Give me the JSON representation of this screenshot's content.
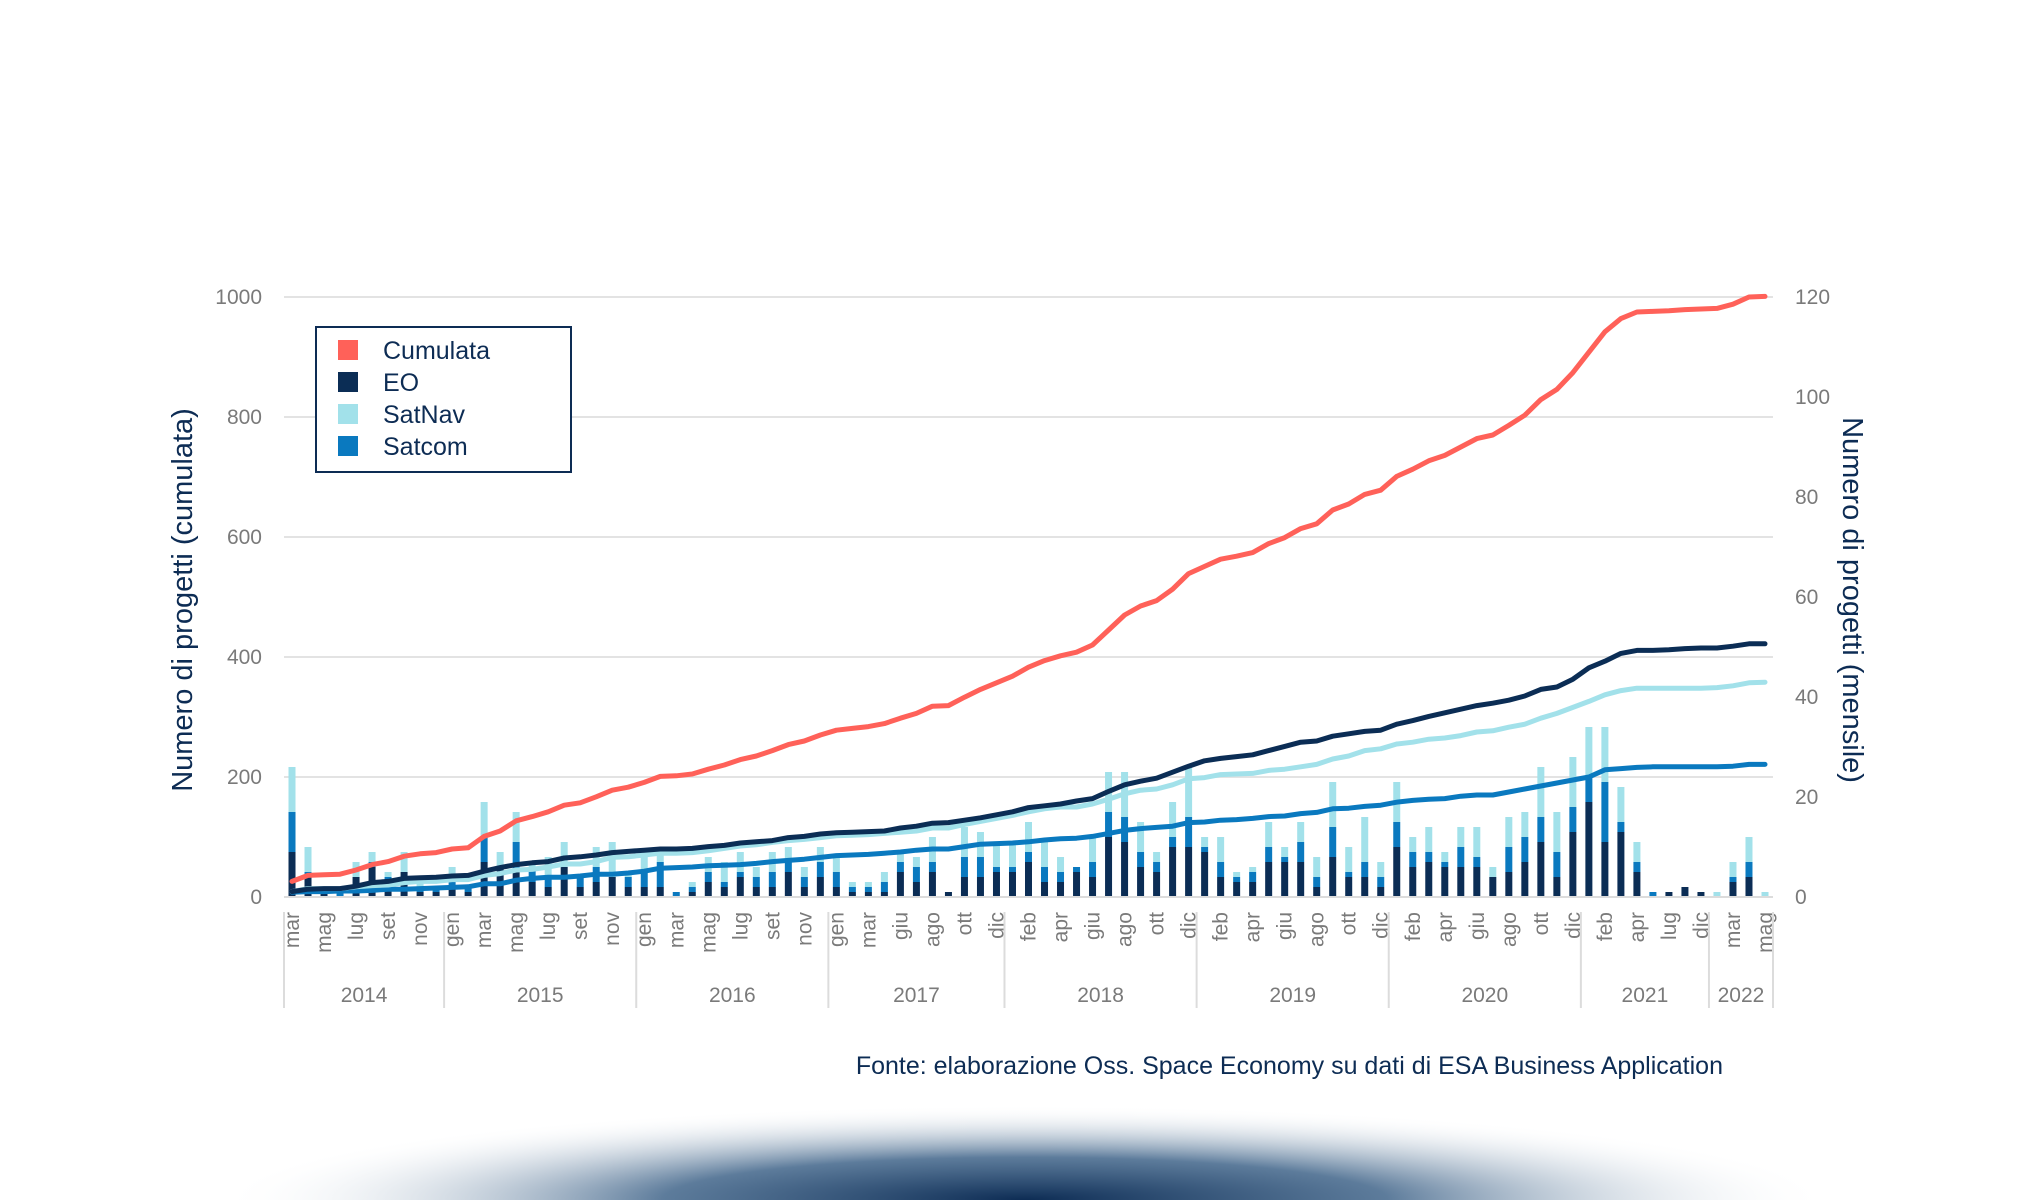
{
  "chart_data": {
    "type": "bar+line",
    "source": "Fonte: elaborazione Oss. Space Economy su dati di ESA Business Application",
    "ylabel_left": "Numero di progetti (cumulata)",
    "ylabel_right": "Numero di progetti (mensile)",
    "ylim_left": [
      0,
      1000
    ],
    "ylim_right": [
      0,
      120
    ],
    "yticks_left": [
      "0",
      "200",
      "400",
      "600",
      "800",
      "1000"
    ],
    "yticks_right": [
      "0",
      "20",
      "40",
      "60",
      "80",
      "100",
      "120"
    ],
    "grid": true,
    "legend_position": "top-left",
    "legend": [
      "Cumulata",
      "EO",
      "SatNav",
      "Satcom"
    ],
    "x_tick_labels": [
      "mar",
      "mag",
      "lug",
      "set",
      "nov",
      "gen",
      "mar",
      "mag",
      "lug",
      "set",
      "nov",
      "gen",
      "mar",
      "mag",
      "lug",
      "set",
      "nov",
      "gen",
      "mar",
      "giu",
      "ago",
      "ott",
      "dic",
      "feb",
      "apr",
      "giu",
      "ago",
      "ott",
      "dic",
      "feb",
      "apr",
      "giu",
      "ago",
      "ott",
      "dic",
      "feb",
      "apr",
      "giu",
      "ago",
      "ott",
      "dic",
      "feb",
      "apr",
      "lug",
      "dic",
      "mar",
      "mag"
    ],
    "year_groups": [
      {
        "year": "2014",
        "count": 10
      },
      {
        "year": "2015",
        "count": 12
      },
      {
        "year": "2016",
        "count": 12
      },
      {
        "year": "2017",
        "count": 11
      },
      {
        "year": "2018",
        "count": 12
      },
      {
        "year": "2019",
        "count": 12
      },
      {
        "year": "2020",
        "count": 12
      },
      {
        "year": "2021",
        "count": 8
      },
      {
        "year": "2022",
        "count": 4
      }
    ],
    "bar_series_monthly_stacked": [
      {
        "name": "EO",
        "axis": "right",
        "color": "#0b2d55",
        "values": [
          9,
          4,
          1,
          0,
          4,
          6,
          2,
          5,
          1,
          1,
          2,
          1,
          7,
          6,
          5,
          3,
          2,
          6,
          2,
          3,
          4,
          2,
          2,
          2,
          0,
          1,
          3,
          2,
          4,
          2,
          2,
          5,
          2,
          4,
          2,
          1,
          1,
          1,
          5,
          3,
          5,
          1,
          4,
          4,
          5,
          5,
          7,
          3,
          3,
          5,
          4,
          12,
          11,
          6,
          5,
          10,
          10,
          9,
          4,
          3,
          3,
          7,
          7,
          7,
          2,
          8,
          4,
          4,
          2,
          10,
          6,
          7,
          6,
          6,
          6,
          4,
          5,
          7,
          11,
          4,
          13,
          19,
          11,
          13,
          5,
          0,
          1,
          2,
          1,
          0,
          3,
          4,
          0
        ]
      },
      {
        "name": "Satcom",
        "axis": "right",
        "color": "#0a79bf",
        "values": [
          8,
          1,
          0,
          1,
          0,
          1,
          2,
          0,
          1,
          1,
          1,
          1,
          5,
          0,
          6,
          3,
          2,
          0,
          2,
          3,
          0,
          2,
          3,
          5,
          1,
          1,
          2,
          1,
          1,
          2,
          3,
          2,
          2,
          3,
          3,
          1,
          1,
          2,
          2,
          3,
          2,
          0,
          4,
          4,
          1,
          1,
          2,
          3,
          2,
          1,
          3,
          5,
          5,
          3,
          2,
          2,
          6,
          1,
          3,
          1,
          2,
          3,
          1,
          4,
          2,
          6,
          1,
          3,
          2,
          5,
          3,
          2,
          1,
          4,
          2,
          0,
          5,
          5,
          5,
          5,
          5,
          5,
          12,
          2,
          2,
          1,
          0,
          0,
          0,
          0,
          1,
          3,
          0
        ]
      },
      {
        "name": "SatNav",
        "axis": "right",
        "color": "#a2e1ea",
        "values": [
          9,
          5,
          0,
          0,
          3,
          2,
          1,
          4,
          2,
          0,
          3,
          0,
          7,
          3,
          6,
          1,
          4,
          5,
          0,
          4,
          7,
          1,
          3,
          3,
          0,
          1,
          3,
          4,
          4,
          2,
          4,
          3,
          2,
          3,
          3,
          1,
          1,
          2,
          2,
          2,
          5,
          0,
          6,
          5,
          5,
          5,
          6,
          5,
          3,
          0,
          5,
          8,
          9,
          6,
          2,
          7,
          10,
          2,
          5,
          1,
          1,
          5,
          2,
          4,
          4,
          9,
          5,
          9,
          3,
          8,
          3,
          5,
          2,
          4,
          6,
          2,
          6,
          5,
          10,
          8,
          10,
          10,
          11,
          7,
          4,
          0,
          0,
          0,
          0,
          1,
          3,
          5,
          1
        ]
      }
    ],
    "line_series_cumulative": [
      {
        "name": "Satcom",
        "axis": "left",
        "color": "#0a79bf",
        "of": "Satcom"
      },
      {
        "name": "SatNav",
        "axis": "left",
        "color": "#a2e1ea",
        "of": "SatNav"
      },
      {
        "name": "EO",
        "axis": "left",
        "color": "#0b2d55",
        "of": "EO"
      },
      {
        "name": "Cumulata",
        "axis": "left",
        "color": "#ff6159",
        "of": "all"
      }
    ]
  }
}
